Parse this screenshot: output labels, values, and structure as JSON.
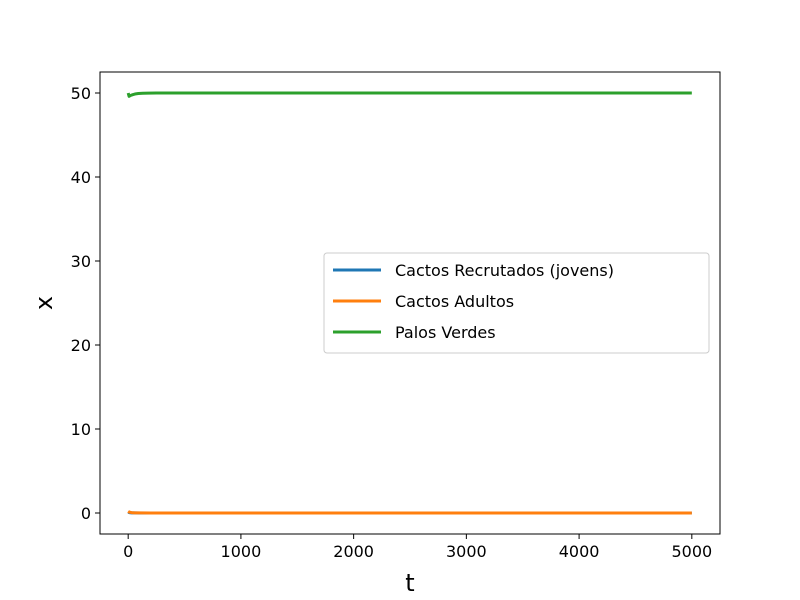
{
  "chart_data": {
    "type": "line",
    "xlabel": "t",
    "ylabel": "x",
    "xlim": [
      -250,
      5250
    ],
    "ylim": [
      -2.5,
      52.5
    ],
    "xticks": [
      0,
      1000,
      2000,
      3000,
      4000,
      5000
    ],
    "yticks": [
      0,
      10,
      20,
      30,
      40,
      50
    ],
    "grid": false,
    "legend_position": "center-right",
    "series": [
      {
        "name": "Cactos Recrutados (jovens)",
        "color": "#1f77b4",
        "x": [
          0,
          10,
          30,
          60,
          100,
          200,
          500,
          1000,
          2000,
          3000,
          4000,
          5000
        ],
        "y": [
          0.1,
          0.05,
          0.02,
          0.01,
          0,
          0,
          0,
          0,
          0,
          0,
          0,
          0
        ]
      },
      {
        "name": "Cactos Adultos",
        "color": "#ff7f0e",
        "x": [
          0,
          10,
          30,
          60,
          100,
          200,
          500,
          1000,
          2000,
          3000,
          4000,
          5000
        ],
        "y": [
          0.2,
          0.1,
          0.05,
          0.02,
          0.01,
          0,
          0,
          0,
          0,
          0,
          0,
          0
        ]
      },
      {
        "name": "Palos Verdes",
        "color": "#2ca02c",
        "x": [
          0,
          8,
          20,
          40,
          60,
          90,
          130,
          180,
          250,
          350,
          500,
          1000,
          2000,
          3000,
          4000,
          5000
        ],
        "y": [
          50,
          49.6,
          49.7,
          49.8,
          49.88,
          49.94,
          49.97,
          49.99,
          50,
          50,
          50,
          50,
          50,
          50,
          50,
          50
        ]
      }
    ]
  }
}
